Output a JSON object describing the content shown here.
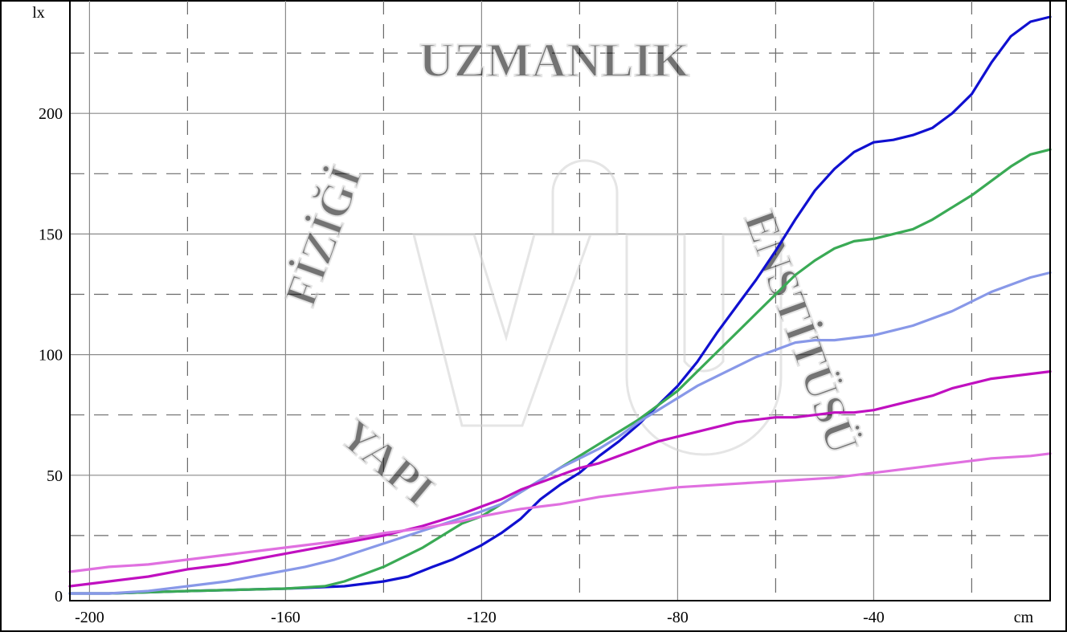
{
  "chart_data": {
    "type": "line",
    "title": "",
    "xlabel": "cm",
    "ylabel": "lx",
    "xlim": [
      -204,
      -4
    ],
    "ylim": [
      -2,
      247
    ],
    "x_ticks": [
      -200,
      -160,
      -120,
      -80,
      -40
    ],
    "y_ticks": [
      0,
      50,
      100,
      150,
      200
    ],
    "x_tick_labels": [
      "-200",
      "-160",
      "-120",
      "-80",
      "-40"
    ],
    "y_tick_labels": [
      "0",
      "50",
      "100",
      "150",
      "200"
    ],
    "grid": true,
    "legend": "none",
    "series": [
      {
        "color": "#1010d0",
        "points": [
          [
            -204,
            1
          ],
          [
            -196,
            1
          ],
          [
            -180,
            2
          ],
          [
            -160,
            3
          ],
          [
            -148,
            4
          ],
          [
            -140,
            6
          ],
          [
            -135,
            8
          ],
          [
            -130,
            12
          ],
          [
            -126,
            15
          ],
          [
            -120,
            21
          ],
          [
            -116,
            26
          ],
          [
            -112,
            32
          ],
          [
            -108,
            40
          ],
          [
            -104,
            46
          ],
          [
            -100,
            51
          ],
          [
            -96,
            58
          ],
          [
            -92,
            64
          ],
          [
            -88,
            71
          ],
          [
            -84,
            79
          ],
          [
            -80,
            87
          ],
          [
            -76,
            97
          ],
          [
            -72,
            109
          ],
          [
            -68,
            120
          ],
          [
            -64,
            131
          ],
          [
            -60,
            143
          ],
          [
            -56,
            156
          ],
          [
            -52,
            168
          ],
          [
            -48,
            177
          ],
          [
            -44,
            184
          ],
          [
            -40,
            188
          ],
          [
            -36,
            189
          ],
          [
            -32,
            191
          ],
          [
            -28,
            194
          ],
          [
            -24,
            200
          ],
          [
            -20,
            208
          ],
          [
            -16,
            221
          ],
          [
            -12,
            232
          ],
          [
            -8,
            238
          ],
          [
            -4,
            240
          ]
        ]
      },
      {
        "color": "#3aaa55",
        "points": [
          [
            -204,
            1
          ],
          [
            -196,
            1
          ],
          [
            -180,
            2
          ],
          [
            -160,
            3
          ],
          [
            -152,
            4
          ],
          [
            -148,
            6
          ],
          [
            -144,
            9
          ],
          [
            -140,
            12
          ],
          [
            -136,
            16
          ],
          [
            -132,
            20
          ],
          [
            -128,
            25
          ],
          [
            -124,
            30
          ],
          [
            -120,
            33
          ],
          [
            -116,
            38
          ],
          [
            -112,
            43
          ],
          [
            -108,
            48
          ],
          [
            -104,
            53
          ],
          [
            -100,
            58
          ],
          [
            -96,
            63
          ],
          [
            -92,
            68
          ],
          [
            -88,
            73
          ],
          [
            -84,
            79
          ],
          [
            -80,
            85
          ],
          [
            -76,
            93
          ],
          [
            -72,
            101
          ],
          [
            -68,
            109
          ],
          [
            -64,
            117
          ],
          [
            -60,
            125
          ],
          [
            -56,
            133
          ],
          [
            -52,
            139
          ],
          [
            -48,
            144
          ],
          [
            -44,
            147
          ],
          [
            -40,
            148
          ],
          [
            -36,
            150
          ],
          [
            -32,
            152
          ],
          [
            -28,
            156
          ],
          [
            -24,
            161
          ],
          [
            -20,
            166
          ],
          [
            -16,
            172
          ],
          [
            -12,
            178
          ],
          [
            -8,
            183
          ],
          [
            -4,
            185
          ]
        ]
      },
      {
        "color": "#8898e8",
        "points": [
          [
            -204,
            1
          ],
          [
            -196,
            1
          ],
          [
            -188,
            2
          ],
          [
            -180,
            4
          ],
          [
            -172,
            6
          ],
          [
            -164,
            9
          ],
          [
            -156,
            12
          ],
          [
            -150,
            15
          ],
          [
            -144,
            19
          ],
          [
            -138,
            23
          ],
          [
            -132,
            27
          ],
          [
            -126,
            31
          ],
          [
            -120,
            35
          ],
          [
            -116,
            38
          ],
          [
            -112,
            43
          ],
          [
            -108,
            48
          ],
          [
            -104,
            53
          ],
          [
            -100,
            57
          ],
          [
            -96,
            61
          ],
          [
            -92,
            66
          ],
          [
            -88,
            72
          ],
          [
            -84,
            77
          ],
          [
            -80,
            82
          ],
          [
            -76,
            87
          ],
          [
            -72,
            91
          ],
          [
            -68,
            95
          ],
          [
            -64,
            99
          ],
          [
            -60,
            102
          ],
          [
            -56,
            105
          ],
          [
            -52,
            106
          ],
          [
            -48,
            106
          ],
          [
            -44,
            107
          ],
          [
            -40,
            108
          ],
          [
            -36,
            110
          ],
          [
            -32,
            112
          ],
          [
            -28,
            115
          ],
          [
            -24,
            118
          ],
          [
            -20,
            122
          ],
          [
            -16,
            126
          ],
          [
            -12,
            129
          ],
          [
            -8,
            132
          ],
          [
            -4,
            134
          ]
        ]
      },
      {
        "color": "#c010c0",
        "points": [
          [
            -204,
            4
          ],
          [
            -196,
            6
          ],
          [
            -188,
            8
          ],
          [
            -180,
            11
          ],
          [
            -172,
            13
          ],
          [
            -164,
            16
          ],
          [
            -156,
            19
          ],
          [
            -148,
            22
          ],
          [
            -140,
            25
          ],
          [
            -132,
            29
          ],
          [
            -124,
            34
          ],
          [
            -120,
            37
          ],
          [
            -116,
            40
          ],
          [
            -112,
            44
          ],
          [
            -108,
            47
          ],
          [
            -104,
            50
          ],
          [
            -100,
            53
          ],
          [
            -96,
            55
          ],
          [
            -92,
            58
          ],
          [
            -88,
            61
          ],
          [
            -84,
            64
          ],
          [
            -80,
            66
          ],
          [
            -76,
            68
          ],
          [
            -72,
            70
          ],
          [
            -68,
            72
          ],
          [
            -64,
            73
          ],
          [
            -60,
            74
          ],
          [
            -56,
            74
          ],
          [
            -52,
            75
          ],
          [
            -48,
            76
          ],
          [
            -44,
            76
          ],
          [
            -40,
            77
          ],
          [
            -36,
            79
          ],
          [
            -32,
            81
          ],
          [
            -28,
            83
          ],
          [
            -24,
            86
          ],
          [
            -20,
            88
          ],
          [
            -16,
            90
          ],
          [
            -12,
            91
          ],
          [
            -8,
            92
          ],
          [
            -4,
            93
          ]
        ]
      },
      {
        "color": "#e070e0",
        "points": [
          [
            -204,
            10
          ],
          [
            -196,
            12
          ],
          [
            -188,
            13
          ],
          [
            -180,
            15
          ],
          [
            -172,
            17
          ],
          [
            -164,
            19
          ],
          [
            -156,
            21
          ],
          [
            -148,
            23
          ],
          [
            -140,
            26
          ],
          [
            -132,
            28
          ],
          [
            -124,
            31
          ],
          [
            -120,
            33
          ],
          [
            -112,
            36
          ],
          [
            -104,
            38
          ],
          [
            -96,
            41
          ],
          [
            -88,
            43
          ],
          [
            -80,
            45
          ],
          [
            -72,
            46
          ],
          [
            -64,
            47
          ],
          [
            -56,
            48
          ],
          [
            -48,
            49
          ],
          [
            -40,
            51
          ],
          [
            -32,
            53
          ],
          [
            -24,
            55
          ],
          [
            -16,
            57
          ],
          [
            -8,
            58
          ],
          [
            -4,
            59
          ]
        ]
      }
    ]
  },
  "watermark": {
    "arc_text": "UZMANLIK",
    "left_text": "FİZİĞİ",
    "right_text": "ENSTİTÜSÜ",
    "bottom_text": "YAPI",
    "logo": "yiu"
  }
}
